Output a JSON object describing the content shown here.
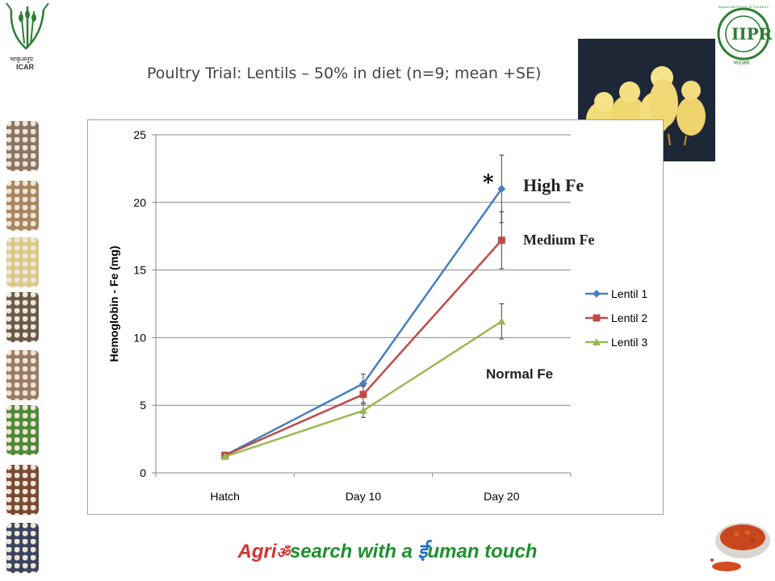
{
  "header": {
    "icar_logo_text": "ICAR",
    "icar_logo_hindi": "भाकृअनुप",
    "iipr_logo_text": "IIPR",
    "iipr_ring_text": "INDIAN INSTITUTE OF PULSES RESEARCH",
    "iipr_logo_hindi": "भादअस"
  },
  "title": "Poultry Trial:  Lentils – 50% in diet (n=9; mean +SE)",
  "chart_data": {
    "type": "line",
    "categories": [
      "Hatch",
      "Day 10",
      "Day 20"
    ],
    "ylabel": "Hemoglobin - Fe  (mg)",
    "ylim": [
      0,
      25
    ],
    "yticks": [
      0,
      5,
      10,
      15,
      20,
      25
    ],
    "grid": true,
    "legend": "right",
    "series": [
      {
        "name": "Lentil 1",
        "values": [
          1.3,
          6.6,
          21.0
        ],
        "errors": [
          0,
          0.7,
          2.5
        ],
        "color": "#4a7ebb",
        "marker": "diamond"
      },
      {
        "name": "Lentil 2",
        "values": [
          1.3,
          5.8,
          17.2
        ],
        "errors": [
          0,
          0.6,
          2.1
        ],
        "color": "#be4b48",
        "marker": "square"
      },
      {
        "name": "Lentil 3",
        "values": [
          1.2,
          4.6,
          11.2
        ],
        "errors": [
          0,
          0.5,
          1.3
        ],
        "color": "#98b954",
        "marker": "triangle"
      }
    ],
    "annotations": {
      "star": "*",
      "high": "High Fe",
      "medium": "Medium Fe",
      "normal": "Normal Fe"
    }
  },
  "footer": {
    "slogan_part1": "Agri",
    "slogan_glyph": "ॐ",
    "slogan_part2": "search with a ",
    "slogan_glyph2": "ई",
    "slogan_part3": "uman touch"
  },
  "colors": {
    "seed_strips": [
      "#8a7566",
      "#a8865f",
      "#d9c98a",
      "#6b5a4a",
      "#9c7a63",
      "#4e8a3a",
      "#7a4a36",
      "#3a4660"
    ]
  }
}
